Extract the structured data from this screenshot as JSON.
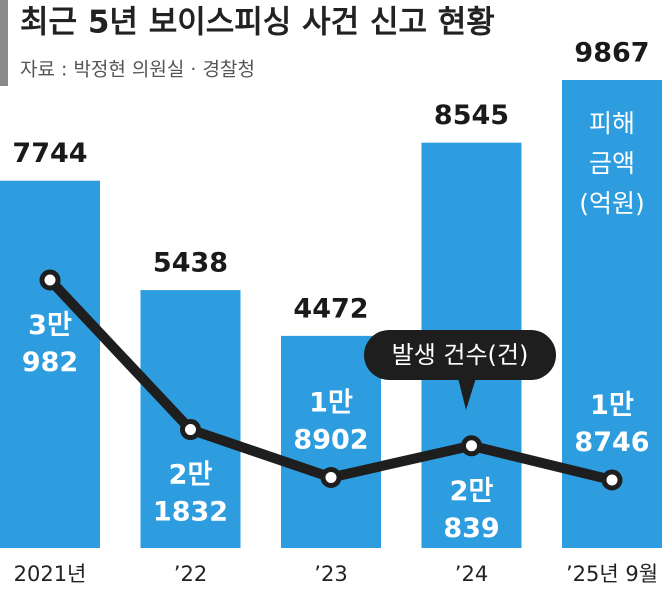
{
  "chart_data": {
    "type": "bar-line",
    "title": "최근 5년 보이스피싱 사건 신고 현황",
    "subtitle": "자료 : 박정현 의원실 · 경찰청",
    "categories": [
      "2021년",
      "’22",
      "’23",
      "’24",
      "’25년 9월"
    ],
    "series": [
      {
        "name": "피해 금액 (억원)",
        "type": "bar",
        "color": "#2d9de0",
        "values": [
          7744,
          5438,
          4472,
          8545,
          9867
        ]
      },
      {
        "name": "발생 건수(건)",
        "type": "line",
        "color": "#1e1e1e",
        "values": [
          30982,
          21832,
          18902,
          20839,
          18746
        ],
        "value_labels": [
          "3만 982",
          "2만 1832",
          "1만 8902",
          "2만 839",
          "1만 8746"
        ]
      }
    ]
  }
}
